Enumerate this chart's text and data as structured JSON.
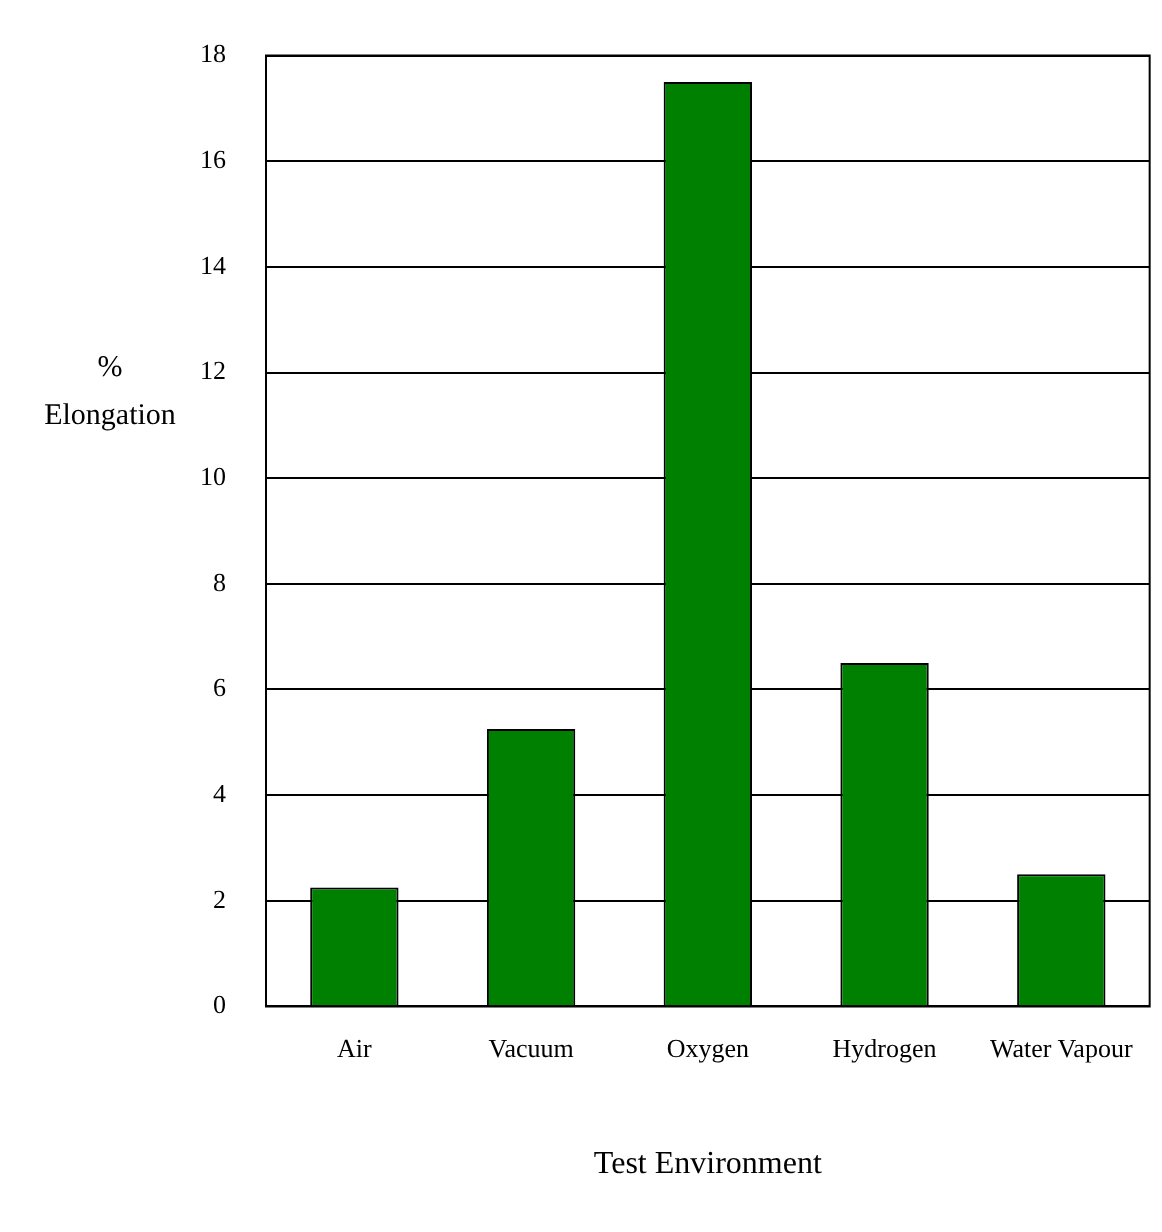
{
  "chart_data": {
    "type": "bar",
    "xlabel": "Test Environment",
    "ylabel": "% Elongation",
    "categories": [
      "Air",
      "Vacuum",
      "Oxygen",
      "Hydrogen",
      "Water Vapour"
    ],
    "values": [
      2.25,
      5.25,
      17.5,
      6.5,
      2.5
    ],
    "color": "#008000",
    "ylim": [
      0,
      18
    ],
    "yticks": [
      0,
      2,
      4,
      6,
      8,
      10,
      12,
      14,
      16,
      18
    ],
    "grid": "y",
    "legend": false
  }
}
